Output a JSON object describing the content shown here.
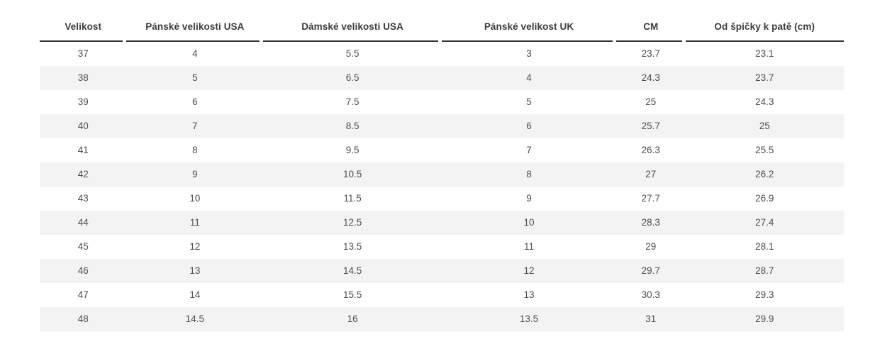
{
  "chart_data": {
    "type": "table",
    "columns": [
      "Velikost",
      "Pánské velikosti USA",
      "Dámské velikosti USA",
      "Pánské velikost UK",
      "CM",
      "Od špičky k patě (cm)"
    ],
    "rows": [
      [
        "37",
        "4",
        "5.5",
        "3",
        "23.7",
        "23.1"
      ],
      [
        "38",
        "5",
        "6.5",
        "4",
        "24.3",
        "23.7"
      ],
      [
        "39",
        "6",
        "7.5",
        "5",
        "25",
        "24.3"
      ],
      [
        "40",
        "7",
        "8.5",
        "6",
        "25.7",
        "25"
      ],
      [
        "41",
        "8",
        "9.5",
        "7",
        "26.3",
        "25.5"
      ],
      [
        "42",
        "9",
        "10.5",
        "8",
        "27",
        "26.2"
      ],
      [
        "43",
        "10",
        "11.5",
        "9",
        "27.7",
        "26.9"
      ],
      [
        "44",
        "11",
        "12.5",
        "10",
        "28.3",
        "27.4"
      ],
      [
        "45",
        "12",
        "13.5",
        "11",
        "29",
        "28.1"
      ],
      [
        "46",
        "13",
        "14.5",
        "12",
        "29.7",
        "28.7"
      ],
      [
        "47",
        "14",
        "15.5",
        "13",
        "30.3",
        "29.3"
      ],
      [
        "48",
        "14.5",
        "16",
        "13.5",
        "31",
        "29.9"
      ]
    ],
    "layout": {
      "legend": "none",
      "grid": "row-striping",
      "row_alt_color": "#f3f3f3",
      "header_border_color": "#333333",
      "header_text_color": "#3b3b3b",
      "cell_text_color": "#4d4d4d"
    }
  }
}
